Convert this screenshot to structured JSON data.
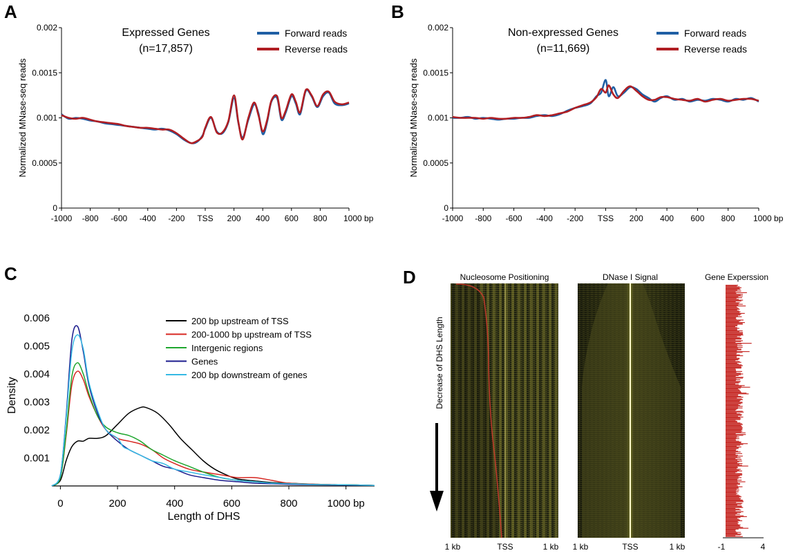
{
  "panels": {
    "A": {
      "letter": "A",
      "title": "Expressed Genes",
      "subtitle": "(n=17,857)"
    },
    "B": {
      "letter": "B",
      "title": "Non-expressed Genes",
      "subtitle": "(n=11,669)"
    },
    "C": {
      "letter": "C"
    },
    "D": {
      "letter": "D"
    }
  },
  "heatmaps": {
    "nucleosome_title": "Nucleosome Positioning",
    "dnase_title": "DNase I Signal",
    "expression_title": "Gene Experssion",
    "side_label": "Decrease of DHS Length",
    "x_left": "1 kb",
    "x_center": "TSS",
    "x_right": "1 kb",
    "expr_min": "-1",
    "expr_max": "4",
    "colors": {
      "heat_bg": "#1c1f10",
      "heat_band": "#b3ad3e",
      "dnase_line": "#fffccd",
      "expression_bar": "#c8302c",
      "edge_curve": "#c0392b"
    }
  },
  "chart_data": [
    {
      "id": "A",
      "type": "line",
      "ylabel": "Normalized MNase-seq reads",
      "xlim": [
        -1000,
        1000
      ],
      "ylim": [
        0,
        0.002
      ],
      "yticks": [
        "0",
        "0.0005",
        "0.001",
        "0.0015",
        "0.002"
      ],
      "xticks": [
        "-1000",
        "-800",
        "-600",
        "-400",
        "-200",
        "TSS",
        "200",
        "400",
        "600",
        "800",
        "1000 bp"
      ],
      "series": [
        {
          "name": "Forward reads",
          "color": "#1f5fa4",
          "x": [
            -1000,
            -950,
            -900,
            -850,
            -800,
            -750,
            -700,
            -650,
            -600,
            -550,
            -500,
            -450,
            -400,
            -350,
            -300,
            -250,
            -200,
            -150,
            -100,
            -60,
            -20,
            0,
            40,
            80,
            120,
            160,
            200,
            230,
            260,
            300,
            340,
            370,
            400,
            430,
            460,
            500,
            530,
            560,
            600,
            630,
            660,
            700,
            740,
            780,
            820,
            860,
            900,
            950,
            1000
          ],
          "y": [
            0.00104,
            0.00099,
            0.001,
            0.00099,
            0.00097,
            0.00096,
            0.00094,
            0.00093,
            0.00092,
            0.00091,
            0.0009,
            0.00089,
            0.00088,
            0.00087,
            0.00088,
            0.00086,
            0.00082,
            0.00076,
            0.00072,
            0.00073,
            0.0008,
            0.00088,
            0.001,
            0.00085,
            0.00083,
            0.00095,
            0.00122,
            0.00095,
            0.00078,
            0.00098,
            0.00115,
            0.00105,
            0.00082,
            0.00095,
            0.00118,
            0.00122,
            0.00098,
            0.00106,
            0.00124,
            0.00116,
            0.00104,
            0.0013,
            0.00124,
            0.00112,
            0.00124,
            0.00128,
            0.00116,
            0.00114,
            0.00116
          ]
        },
        {
          "name": "Reverse reads",
          "color": "#b01e23",
          "x": [
            -1000,
            -950,
            -900,
            -850,
            -800,
            -750,
            -700,
            -650,
            -600,
            -550,
            -500,
            -450,
            -400,
            -350,
            -300,
            -250,
            -200,
            -150,
            -100,
            -60,
            -20,
            0,
            40,
            80,
            120,
            160,
            200,
            230,
            260,
            300,
            340,
            370,
            400,
            430,
            460,
            500,
            530,
            560,
            600,
            630,
            660,
            700,
            740,
            780,
            820,
            860,
            900,
            950,
            1000
          ],
          "y": [
            0.00103,
            0.001,
            0.00099,
            0.001,
            0.00098,
            0.00096,
            0.00095,
            0.00094,
            0.00093,
            0.00091,
            0.0009,
            0.00089,
            0.00089,
            0.00088,
            0.00087,
            0.00087,
            0.00083,
            0.00077,
            0.00072,
            0.00074,
            0.00079,
            0.00089,
            0.00101,
            0.00084,
            0.00084,
            0.00096,
            0.00125,
            0.00096,
            0.00076,
            0.001,
            0.00117,
            0.00103,
            0.00085,
            0.00097,
            0.00119,
            0.00124,
            0.001,
            0.00108,
            0.00126,
            0.00118,
            0.00106,
            0.00131,
            0.00125,
            0.00113,
            0.00126,
            0.00129,
            0.00118,
            0.00115,
            0.00117
          ]
        }
      ]
    },
    {
      "id": "B",
      "type": "line",
      "ylabel": "Normalized MNase-seq reads",
      "xlim": [
        -1000,
        1000
      ],
      "ylim": [
        0,
        0.002
      ],
      "yticks": [
        "0",
        "0.0005",
        "0.001",
        "0.0015",
        "0.002"
      ],
      "xticks": [
        "-1000",
        "-800",
        "-600",
        "-400",
        "-200",
        "TSS",
        "200",
        "400",
        "600",
        "800",
        "1000 bp"
      ],
      "series": [
        {
          "name": "Forward reads",
          "color": "#1f5fa4",
          "x": [
            -1000,
            -950,
            -900,
            -850,
            -800,
            -750,
            -700,
            -650,
            -600,
            -550,
            -500,
            -450,
            -400,
            -350,
            -300,
            -250,
            -200,
            -150,
            -100,
            -60,
            -30,
            0,
            20,
            50,
            80,
            120,
            160,
            200,
            240,
            280,
            320,
            360,
            400,
            450,
            500,
            550,
            600,
            650,
            700,
            750,
            800,
            850,
            900,
            950,
            1000
          ],
          "y": [
            0.001,
            0.001,
            0.00101,
            0.00099,
            0.001,
            0.00099,
            0.00098,
            0.00099,
            0.00099,
            0.001,
            0.001,
            0.00102,
            0.00103,
            0.00102,
            0.00104,
            0.00108,
            0.00111,
            0.00113,
            0.00116,
            0.00124,
            0.00128,
            0.00142,
            0.00124,
            0.00134,
            0.00124,
            0.00128,
            0.00134,
            0.00132,
            0.00126,
            0.00122,
            0.00118,
            0.00122,
            0.00124,
            0.0012,
            0.00121,
            0.00118,
            0.0012,
            0.00119,
            0.00121,
            0.0012,
            0.00118,
            0.00121,
            0.0012,
            0.00122,
            0.00118
          ]
        },
        {
          "name": "Reverse reads",
          "color": "#b01e23",
          "x": [
            -1000,
            -950,
            -900,
            -850,
            -800,
            -750,
            -700,
            -650,
            -600,
            -550,
            -500,
            -450,
            -400,
            -350,
            -300,
            -250,
            -200,
            -150,
            -100,
            -60,
            -30,
            0,
            20,
            50,
            80,
            120,
            160,
            200,
            240,
            280,
            320,
            360,
            400,
            450,
            500,
            550,
            600,
            650,
            700,
            750,
            800,
            850,
            900,
            950,
            1000
          ],
          "y": [
            0.00101,
            0.001,
            0.001,
            0.001,
            0.00099,
            0.001,
            0.00099,
            0.00099,
            0.001,
            0.001,
            0.00101,
            0.00103,
            0.00102,
            0.00103,
            0.00105,
            0.00107,
            0.00111,
            0.00114,
            0.00117,
            0.00123,
            0.00132,
            0.00128,
            0.00136,
            0.00126,
            0.00122,
            0.0013,
            0.00135,
            0.0013,
            0.00124,
            0.0012,
            0.0012,
            0.00123,
            0.00123,
            0.00121,
            0.0012,
            0.00119,
            0.00121,
            0.00118,
            0.0012,
            0.00121,
            0.00119,
            0.0012,
            0.00121,
            0.00121,
            0.00119
          ]
        }
      ]
    },
    {
      "id": "C",
      "type": "line",
      "xlabel": "Length of DHS",
      "ylabel": "Density",
      "xlim": [
        -30,
        1100
      ],
      "ylim": [
        0,
        0.006
      ],
      "yticks": [
        "0.001",
        "0.002",
        "0.003",
        "0.004",
        "0.005",
        "0.006"
      ],
      "xticks": [
        "0",
        "200",
        "400",
        "600",
        "800",
        "1000 bp"
      ],
      "series": [
        {
          "name": "200 bp upstream of TSS",
          "color": "#000000",
          "x": [
            -30,
            0,
            20,
            40,
            60,
            80,
            100,
            130,
            160,
            200,
            240,
            280,
            300,
            340,
            380,
            420,
            460,
            500,
            540,
            580,
            620,
            680,
            740,
            800,
            900,
            1000,
            1100
          ],
          "y": [
            0,
            0.0002,
            0.0009,
            0.0014,
            0.0016,
            0.0016,
            0.0017,
            0.0017,
            0.0018,
            0.0022,
            0.0026,
            0.0028,
            0.0028,
            0.0026,
            0.0022,
            0.0017,
            0.0013,
            0.0009,
            0.0006,
            0.0004,
            0.00025,
            0.00018,
            0.00012,
            0.0001,
            6e-05,
            4e-05,
            2e-05
          ]
        },
        {
          "name": "200-1000 bp upstream of TSS",
          "color": "#d72620",
          "x": [
            -30,
            0,
            20,
            40,
            60,
            80,
            100,
            130,
            160,
            200,
            240,
            280,
            320,
            360,
            400,
            450,
            500,
            560,
            620,
            680,
            740,
            800,
            900,
            1000,
            1100
          ],
          "y": [
            0,
            0.0003,
            0.0018,
            0.0036,
            0.0041,
            0.0038,
            0.0032,
            0.0025,
            0.002,
            0.0017,
            0.0016,
            0.0015,
            0.0013,
            0.001,
            0.0008,
            0.0006,
            0.0005,
            0.0004,
            0.0003,
            0.0003,
            0.0002,
            0.0001,
            6e-05,
            4e-05,
            2e-05
          ]
        },
        {
          "name": "Intergenic regions",
          "color": "#1ea62e",
          "x": [
            -30,
            0,
            20,
            40,
            60,
            80,
            100,
            130,
            160,
            200,
            240,
            280,
            320,
            360,
            400,
            450,
            500,
            560,
            620,
            680,
            740,
            800,
            900,
            1000,
            1100
          ],
          "y": [
            0,
            0.0003,
            0.0019,
            0.0039,
            0.0044,
            0.004,
            0.0033,
            0.0025,
            0.0021,
            0.0019,
            0.0018,
            0.0016,
            0.0013,
            0.0011,
            0.0009,
            0.0007,
            0.0005,
            0.0003,
            0.0002,
            0.00015,
            0.0001,
            8e-05,
            5e-05,
            4e-05,
            2e-05
          ]
        },
        {
          "name": "Genes",
          "color": "#1a1a8c",
          "x": [
            -30,
            0,
            20,
            40,
            60,
            80,
            100,
            130,
            160,
            200,
            240,
            280,
            320,
            360,
            400,
            450,
            500,
            560,
            620,
            680,
            740,
            800,
            900,
            1000,
            1100
          ],
          "y": [
            0,
            0.0004,
            0.0025,
            0.0052,
            0.0057,
            0.0048,
            0.0036,
            0.0026,
            0.002,
            0.0016,
            0.0013,
            0.0011,
            0.0009,
            0.0007,
            0.0006,
            0.0004,
            0.0003,
            0.0002,
            0.00015,
            0.0001,
            8e-05,
            6e-05,
            4e-05,
            3e-05,
            2e-05
          ]
        },
        {
          "name": "200 bp downstream of genes",
          "color": "#35b9e4",
          "x": [
            -30,
            0,
            20,
            40,
            60,
            80,
            100,
            130,
            160,
            200,
            220,
            240,
            280,
            320,
            360,
            400,
            450,
            500,
            560,
            620,
            680,
            740,
            800,
            900,
            1000,
            1100
          ],
          "y": [
            0,
            0.0004,
            0.0024,
            0.0048,
            0.0054,
            0.0049,
            0.0037,
            0.0027,
            0.002,
            0.0017,
            0.0014,
            0.0013,
            0.0011,
            0.0009,
            0.0008,
            0.0006,
            0.0005,
            0.0004,
            0.0003,
            0.0002,
            0.00015,
            0.0001,
            8e-05,
            5e-05,
            4e-05,
            2e-05
          ]
        }
      ]
    }
  ]
}
